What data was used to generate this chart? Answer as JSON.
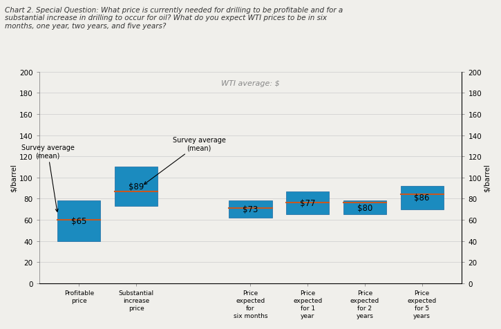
{
  "title": "Chart 2. Special Question: What price is currently needed for drilling to be profitable and for a\nsubstantial increase in drilling to occur for oil? What do you expect WTI prices to be in six\nmonths, one year, two years, and five years?",
  "left_axis_label": "$/barrel",
  "right_axis_label": "$/barrel",
  "wti_label": "WTI average: $",
  "ylim": [
    0,
    200
  ],
  "yticks": [
    0,
    20,
    40,
    60,
    80,
    100,
    120,
    140,
    160,
    180,
    200
  ],
  "bar_positions": [
    1,
    2,
    4,
    5,
    6,
    7
  ],
  "bar_bottoms": [
    40,
    73,
    62,
    65,
    65,
    70
  ],
  "bar_tops": [
    78,
    110,
    78,
    87,
    78,
    92
  ],
  "bar_averages": [
    65,
    89,
    73,
    77,
    80,
    86
  ],
  "bar_medians": [
    60,
    87,
    71,
    76,
    76,
    84
  ],
  "bar_color": "#1b8bbf",
  "median_color": "#c85820",
  "bar_width": 0.75,
  "categories": [
    "Profitable\nprice",
    "Substantial\nincrease\nprice",
    "Price\nexpected\nfor\nsix months",
    "Price\nexpected\nfor 1\nyear",
    "Price\nexpected\nfor 2\nyears",
    "Price\nexpected\nfor 5\nyears"
  ],
  "annotation1_text": "Survey average\n(mean)",
  "annotation2_text": "Survey average\n(mean)",
  "background_color": "#f0efeb",
  "title_fontsize": 7.5,
  "tick_fontsize": 7.5,
  "label_fontsize": 7.5,
  "bar_label_fontsize": 8.5,
  "wti_label_fontsize": 8,
  "annotation_fontsize": 7
}
